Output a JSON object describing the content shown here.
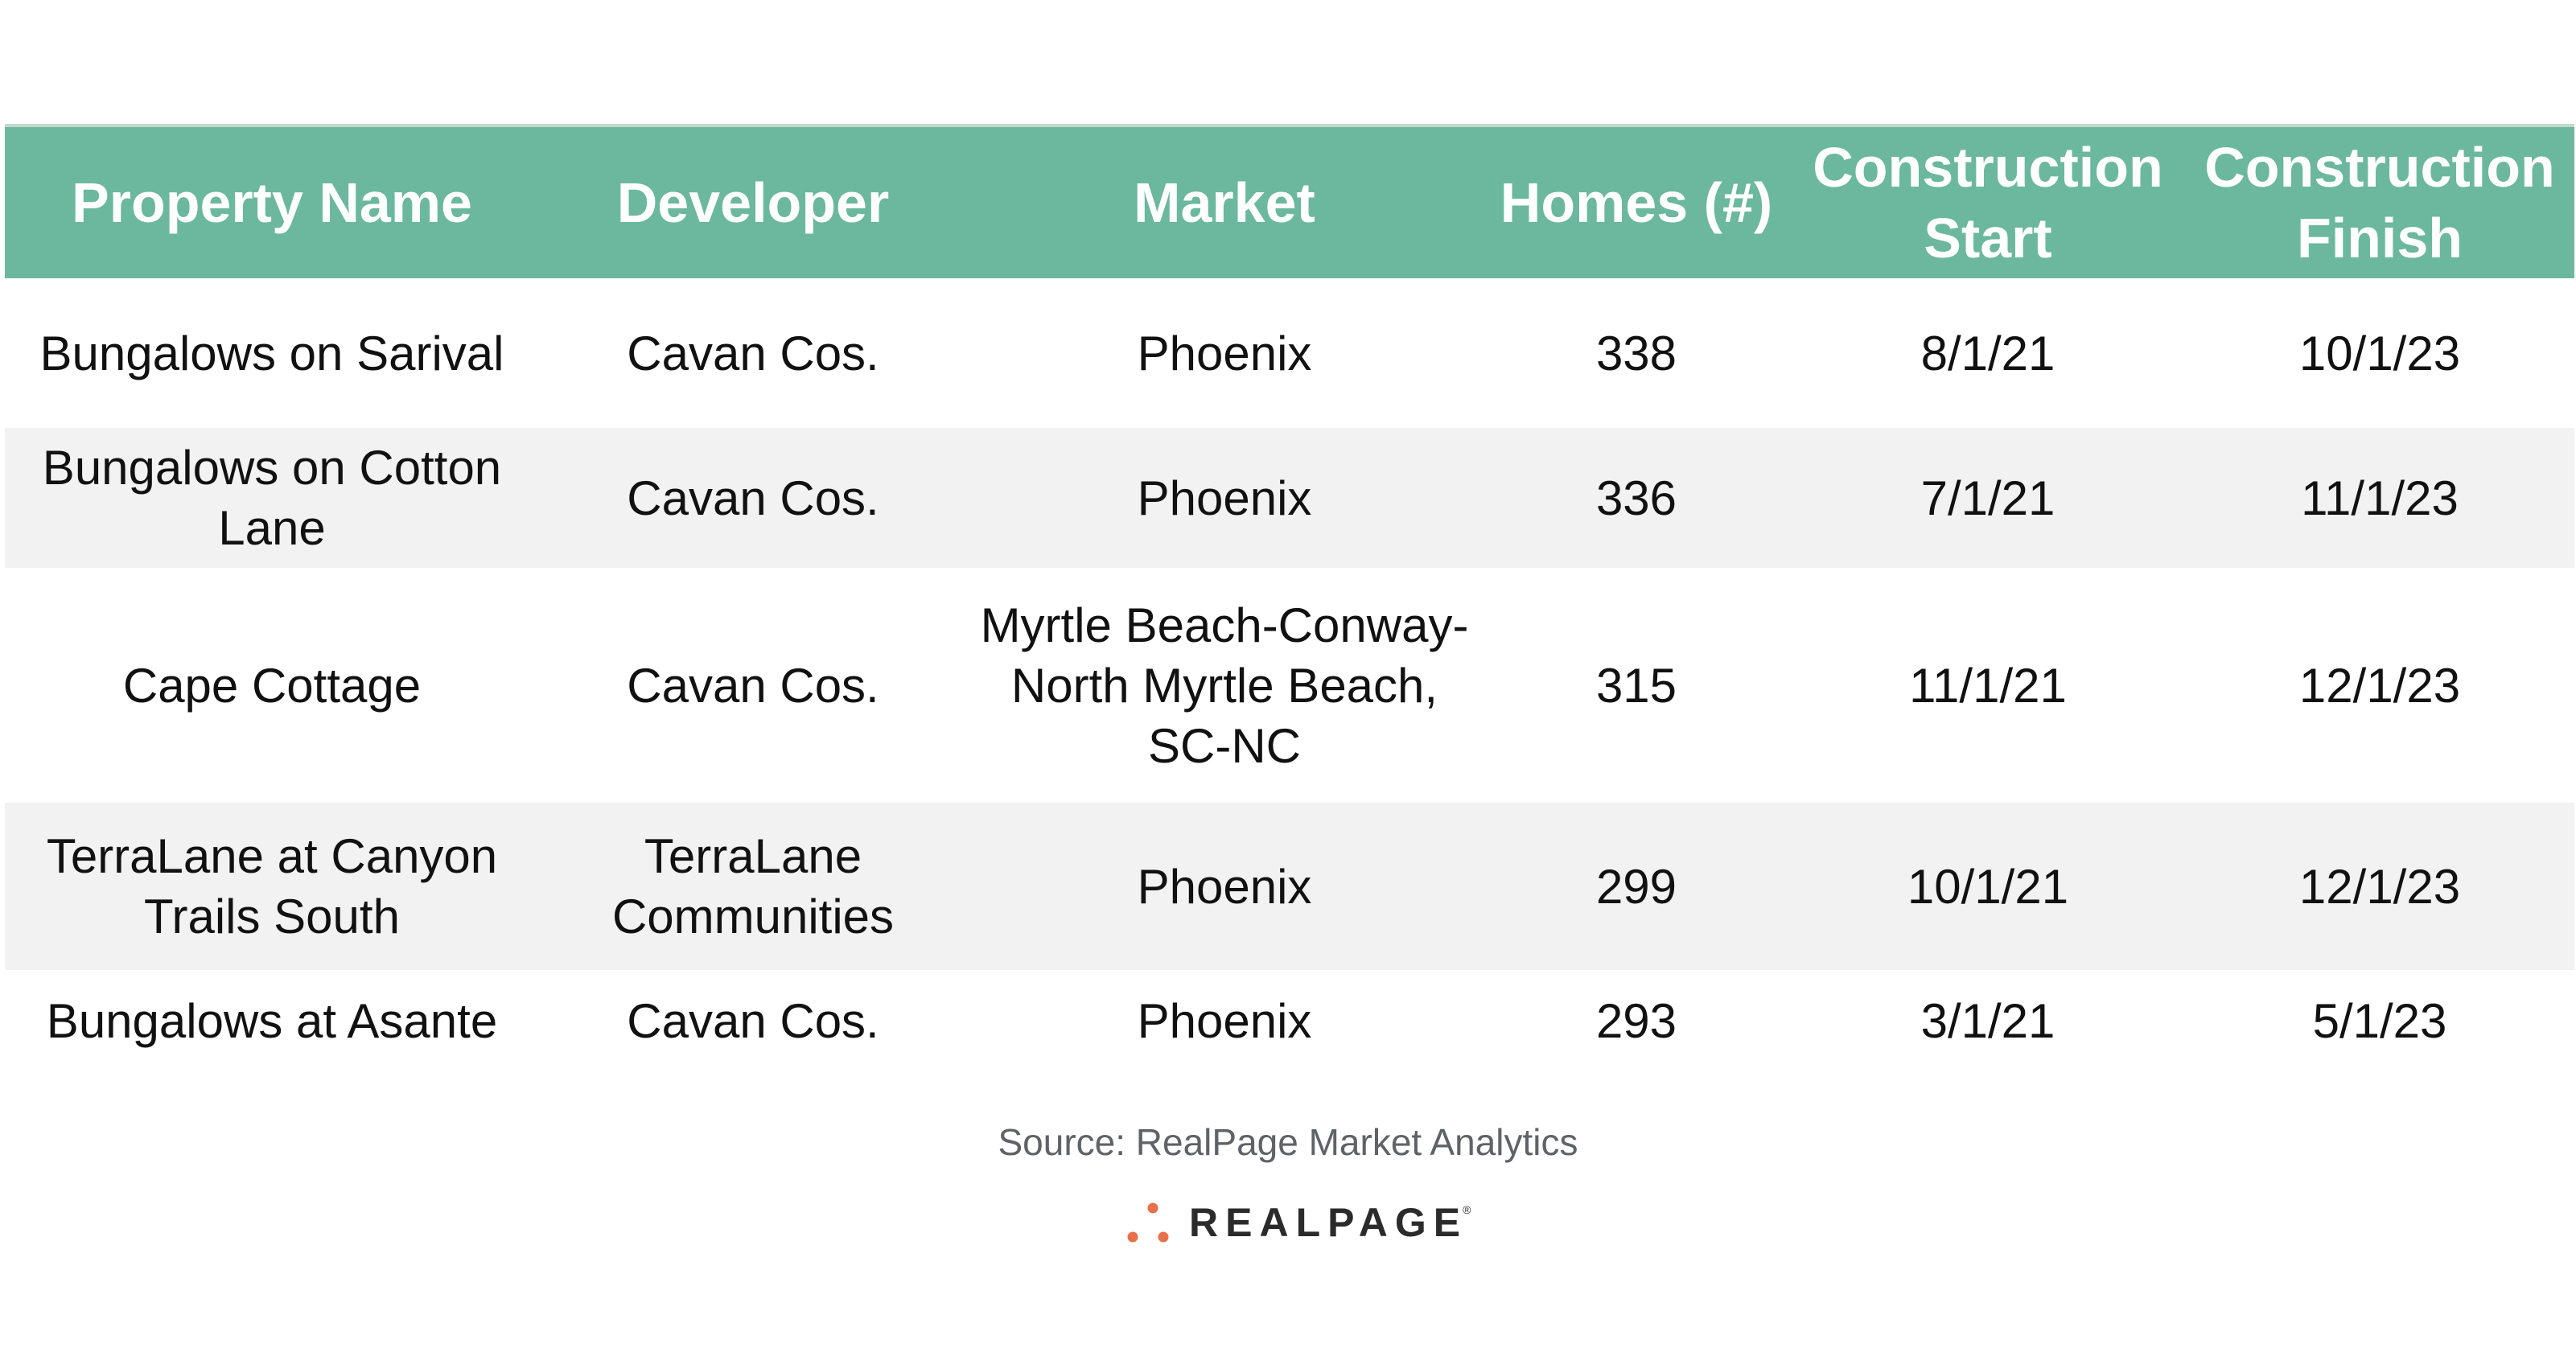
{
  "table": {
    "headers": [
      "Property Name",
      "Developer",
      "Market",
      "Homes (#)",
      "Construction Start",
      "Construction Finish"
    ],
    "rows": [
      [
        "Bungalows on Sarival",
        "Cavan Cos.",
        "Phoenix",
        "338",
        "8/1/21",
        "10/1/23"
      ],
      [
        "Bungalows on Cotton Lane",
        "Cavan Cos.",
        "Phoenix",
        "336",
        "7/1/21",
        "11/1/23"
      ],
      [
        "Cape Cottage",
        "Cavan Cos.",
        "Myrtle Beach-Conway-North Myrtle Beach, SC-NC",
        "315",
        "11/1/21",
        "12/1/23"
      ],
      [
        "TerraLane at Canyon Trails South",
        "TerraLane Communities",
        "Phoenix",
        "299",
        "10/1/21",
        "12/1/23"
      ],
      [
        "Bungalows at Asante",
        "Cavan Cos.",
        "Phoenix",
        "293",
        "3/1/21",
        "5/1/23"
      ]
    ]
  },
  "footer": {
    "source": "Source: RealPage Market Analytics",
    "logo_text": "REALPAGE",
    "logo_trademark": "®"
  },
  "colors": {
    "header_bg": "#6bb89e",
    "header_text": "#ffffff",
    "row_shade": "#f2f2f2",
    "logo_dots": "#e8704a"
  },
  "icons": {
    "logo_mark": "realpage-dots-icon"
  }
}
